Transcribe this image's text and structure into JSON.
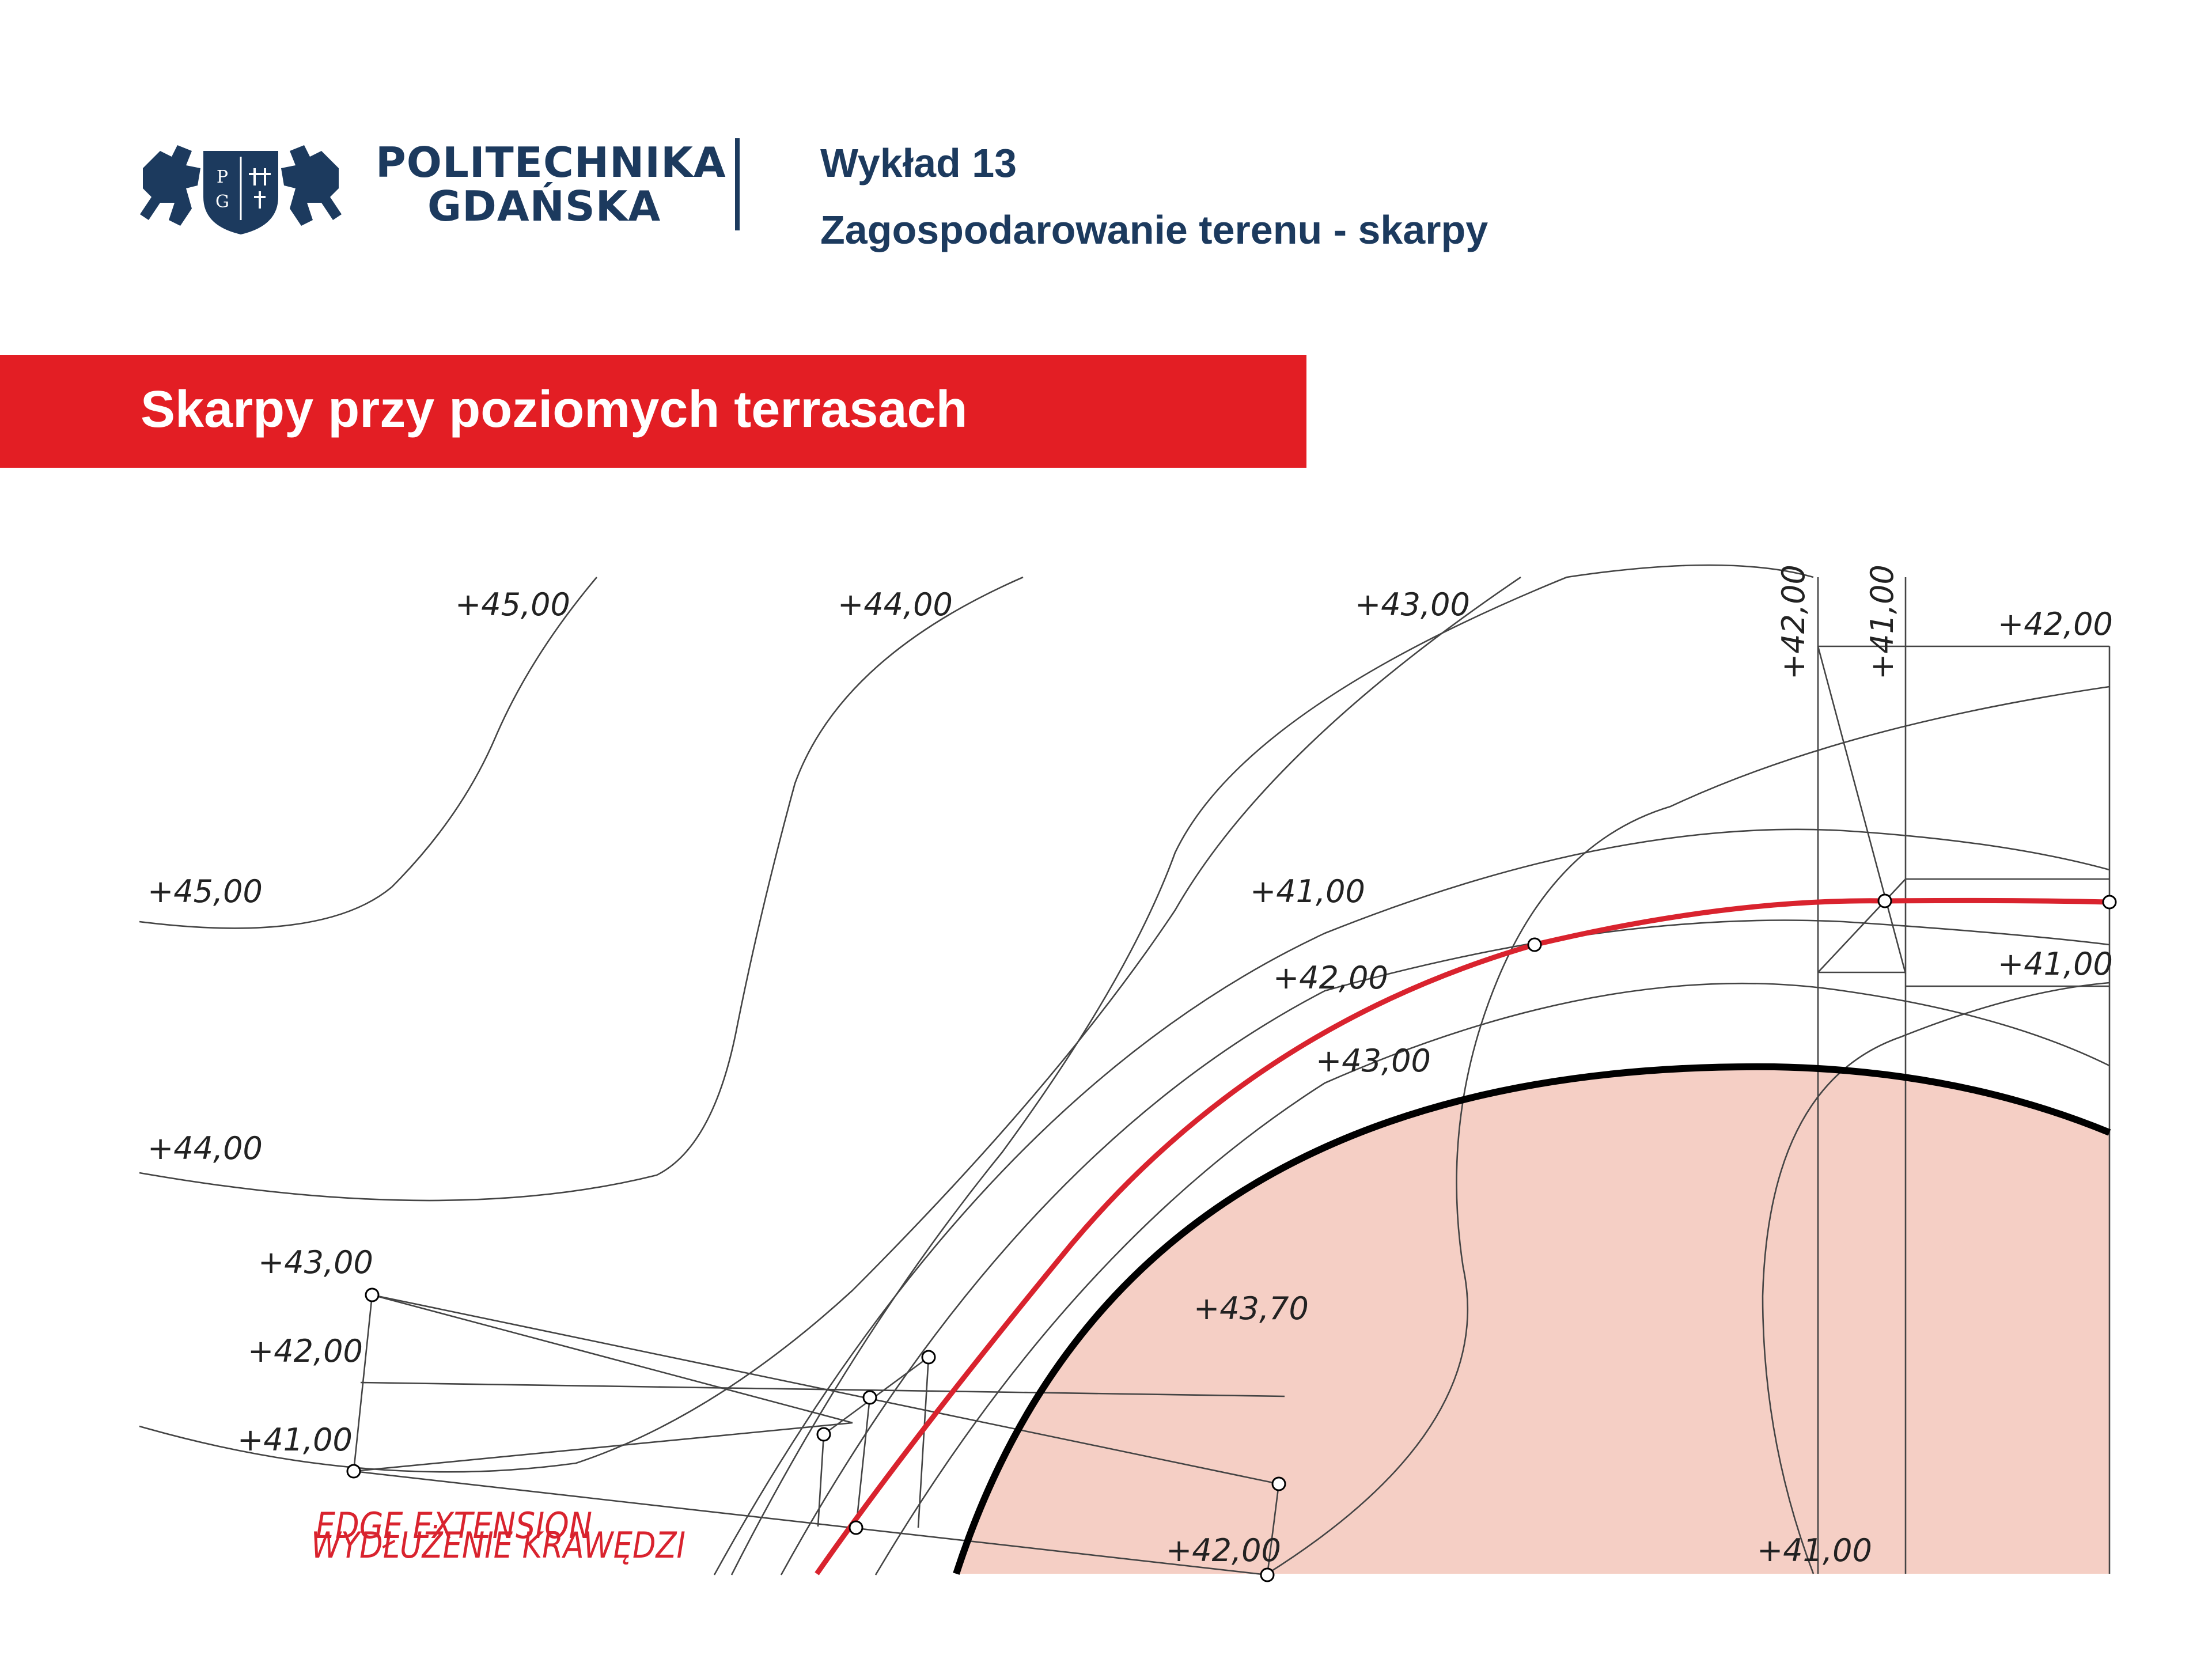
{
  "header": {
    "university_line1": "POLITECHNIKA",
    "university_line2": "GDAŃSKA",
    "emblem_letters": [
      "P",
      "G"
    ],
    "lecture_number": "Wykład 13",
    "lecture_title": "Zagospodarowanie terenu - skarpy"
  },
  "section": {
    "title": "Skarpy przy poziomych terrasach"
  },
  "diagram": {
    "contour_labels": {
      "c45_top": "+45,00",
      "c44_top": "+44,00",
      "c43_top": "+43,00",
      "c42_vert": "+42,00",
      "c41_vert": "+41,00",
      "c42_right": "+42,00",
      "c45_left": "+45,00",
      "c41_mid": "+41,00",
      "c42_mid": "+42,00",
      "c41_right": "+41,00",
      "c43_mid": "+43,00",
      "c44_left": "+44,00",
      "c43_left": "+43,00",
      "c43_70": "+43,70",
      "c42_left": "+42,00",
      "c41_left": "+41,00",
      "c42_bottom": "+42,00",
      "c41_bottom": "+41,00"
    },
    "overlay_label_1": "EDGE EXTENSION",
    "overlay_label_2": "WYDŁUŻENIE KRAWĘDZI",
    "colors": {
      "terrace_fill": "#f5cfc5",
      "red_line": "#d9232e",
      "terrace_edge": "#000000",
      "contour": "#444444",
      "brand_navy": "#1c3a5e",
      "brand_red": "#e31e24"
    }
  }
}
